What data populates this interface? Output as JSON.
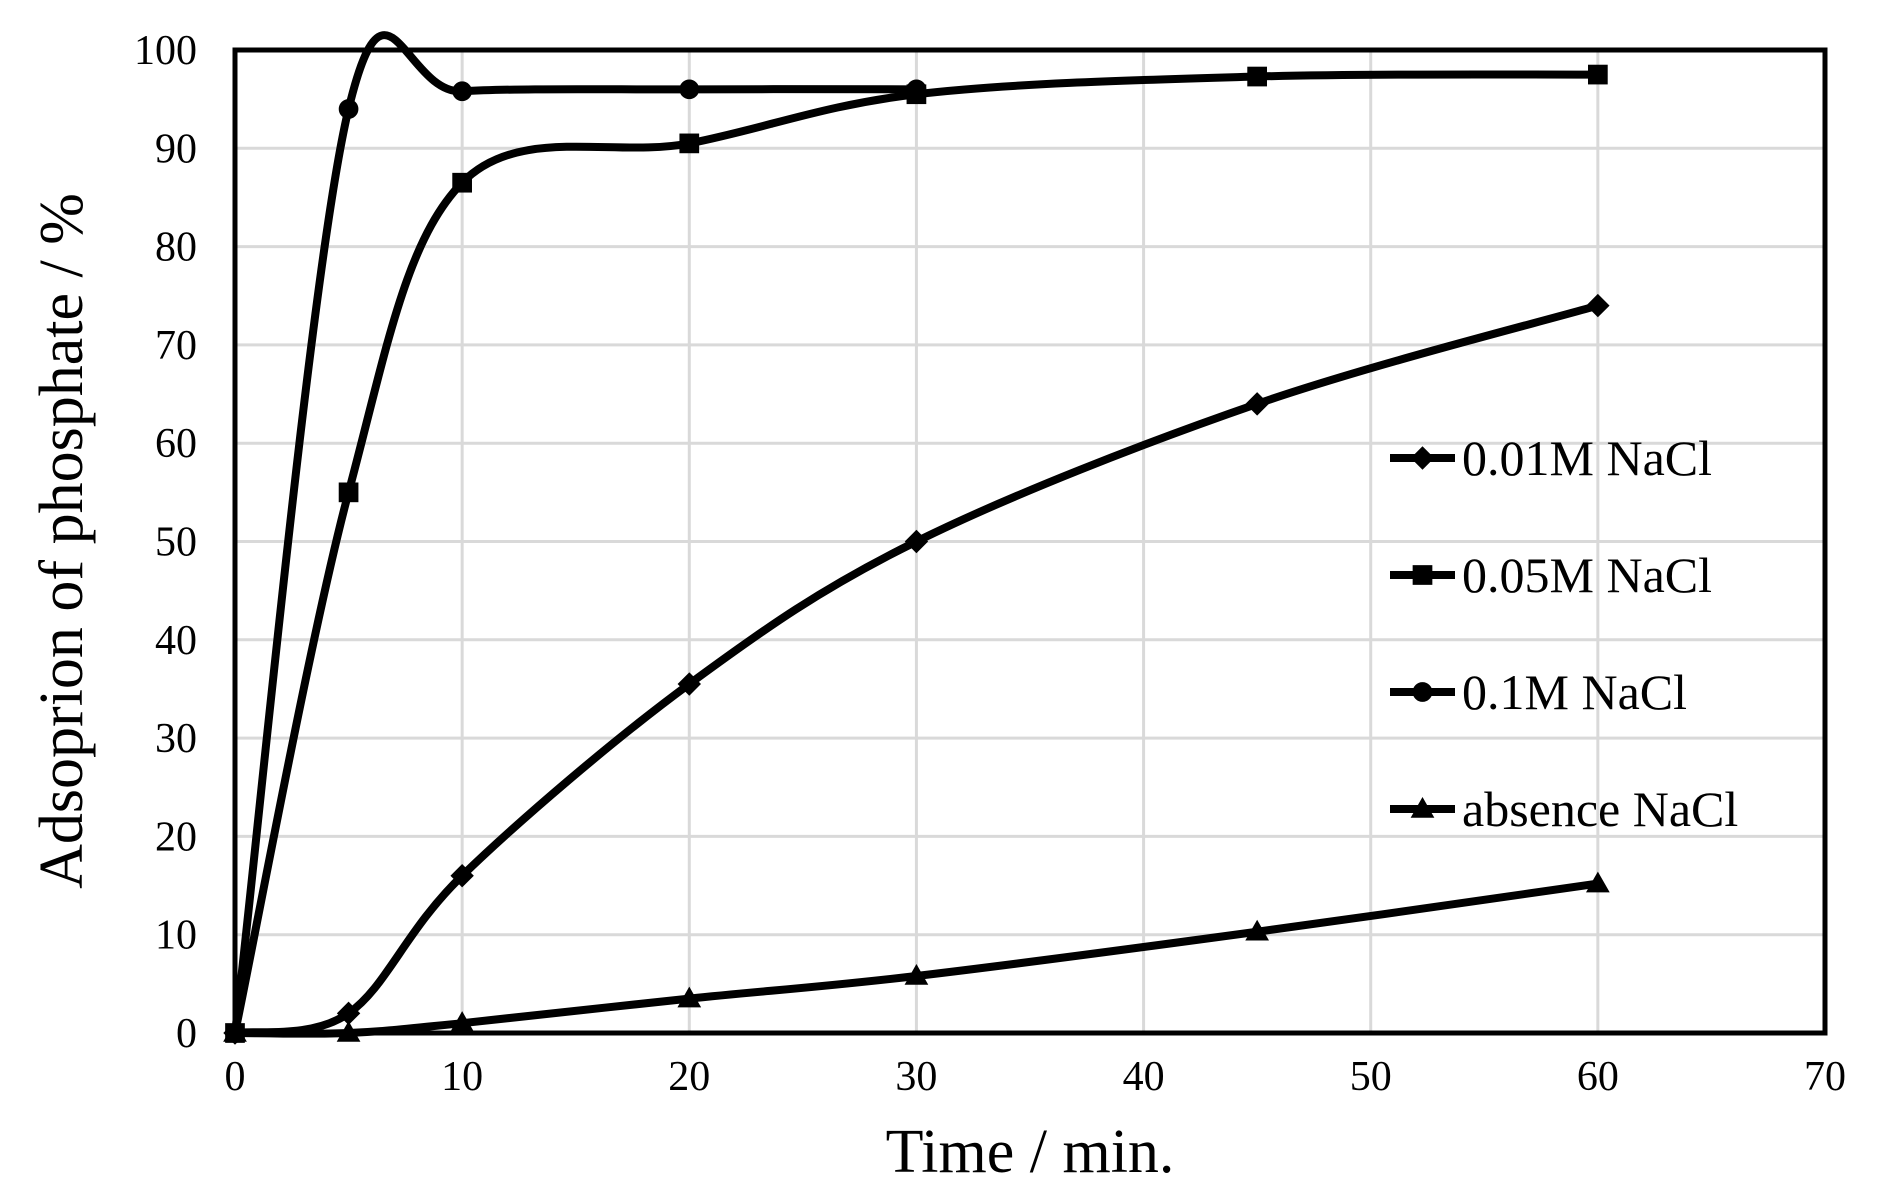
{
  "chart_data": {
    "type": "line",
    "title": "",
    "xlabel": "Time / min.",
    "ylabel": "Adsoprion of phosphate / %",
    "xlim": [
      0,
      70
    ],
    "ylim": [
      0,
      100
    ],
    "x_ticks": [
      0,
      10,
      20,
      30,
      40,
      50,
      60,
      70
    ],
    "y_ticks": [
      0,
      10,
      20,
      30,
      40,
      50,
      60,
      70,
      80,
      90,
      100
    ],
    "grid": true,
    "smooth": true,
    "legend_position": "right",
    "series": [
      {
        "name": "0.01M NaCl",
        "marker": "diamond",
        "x": [
          0,
          5,
          10,
          20,
          30,
          45,
          60
        ],
        "y": [
          0,
          2,
          16,
          35.5,
          50,
          64,
          74
        ]
      },
      {
        "name": "0.05M NaCl",
        "marker": "square",
        "x": [
          0,
          5,
          10,
          20,
          30,
          45,
          60
        ],
        "y": [
          0,
          55,
          86.5,
          90.5,
          95.5,
          97.3,
          97.5
        ]
      },
      {
        "name": "0.1M NaCl",
        "marker": "circle",
        "x": [
          0,
          5,
          10,
          20,
          30
        ],
        "y": [
          0,
          94,
          95.8,
          96,
          96
        ]
      },
      {
        "name": "absence NaCl",
        "marker": "triangle",
        "x": [
          0,
          5,
          10,
          20,
          30,
          45,
          60
        ],
        "y": [
          0,
          0,
          1,
          3.5,
          5.8,
          10.3,
          15.2
        ]
      }
    ],
    "colors": {
      "line": "#000000",
      "grid": "#d9d9d9",
      "background": "#ffffff"
    }
  }
}
